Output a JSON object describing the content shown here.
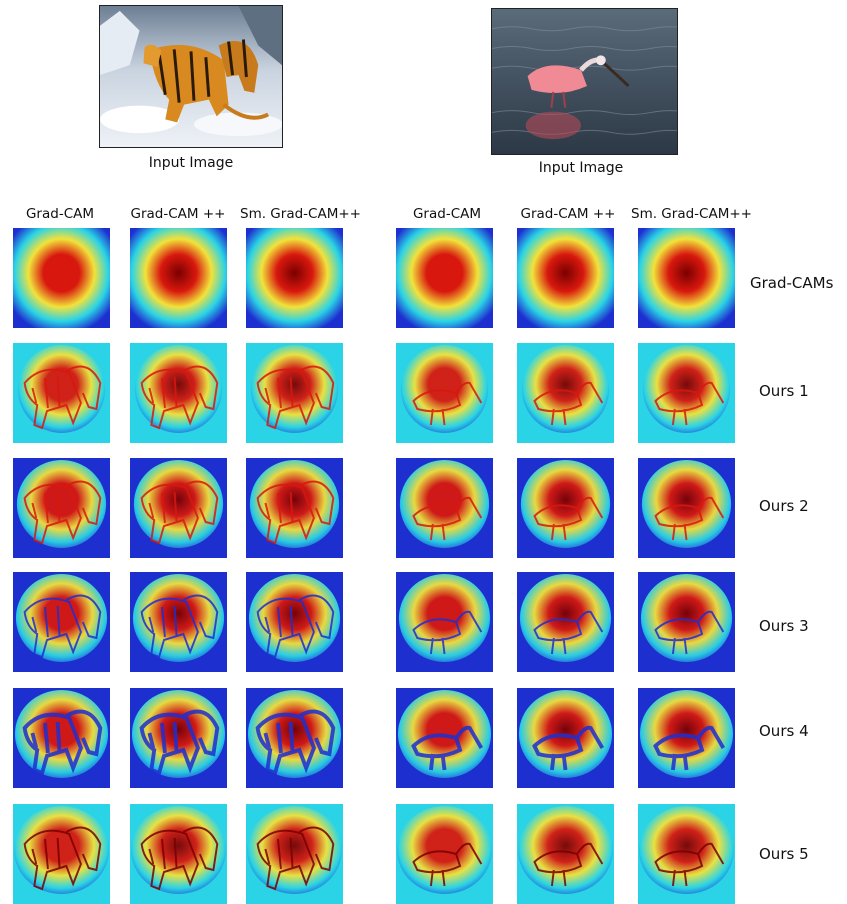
{
  "inputs": [
    {
      "caption": "Input Image",
      "subject": "tigers-in-snow"
    },
    {
      "caption": "Input Image",
      "subject": "spoonbill-in-water"
    }
  ],
  "methods": [
    "Grad-CAM",
    "Grad-CAM ++",
    "Sm. Grad-CAM++"
  ],
  "rows": [
    "Grad-CAMs",
    "Ours 1",
    "Ours 2",
    "Ours 3",
    "Ours 4",
    "Ours 5"
  ],
  "colors": {
    "jet_blue": "#1e2fd0",
    "jet_cyan": "#2ad4e6",
    "jet_yellow": "#f2e23a",
    "jet_red": "#d8180e",
    "jet_darkred": "#7a0000"
  }
}
